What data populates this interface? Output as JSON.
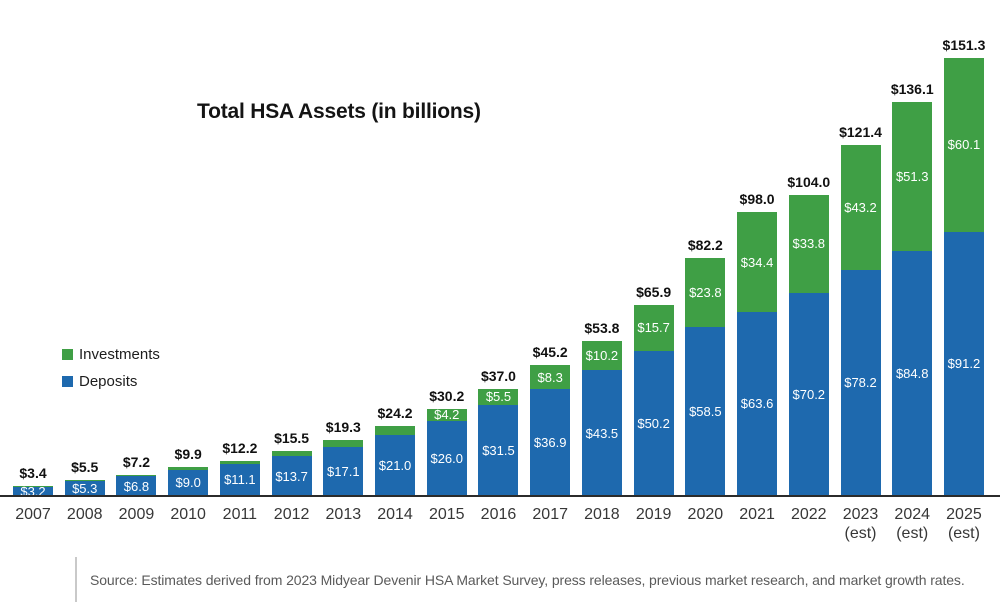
{
  "title": "Total HSA Assets (in billions)",
  "legend": {
    "investments": {
      "label": "Investments"
    },
    "deposits": {
      "label": "Deposits"
    }
  },
  "source": "Source: Estimates derived from 2023 Midyear Devenir HSA Market Survey, press releases, previous market research, and market growth rates.",
  "colors": {
    "investments": "#3f9f45",
    "deposits": "#1e69ae",
    "axis": "#2b2b2b",
    "total_label": "#111111",
    "segment_label": "#ffffff",
    "source_text": "#5a5a5a"
  },
  "chart_data": {
    "type": "bar",
    "stacked": true,
    "title": "Total HSA Assets (in billions)",
    "unit": "USD billions",
    "grid": false,
    "legend_position": "middle-left",
    "ylim": [
      0,
      160
    ],
    "categories": [
      {
        "label": "2007",
        "sublabel": ""
      },
      {
        "label": "2008",
        "sublabel": ""
      },
      {
        "label": "2009",
        "sublabel": ""
      },
      {
        "label": "2010",
        "sublabel": ""
      },
      {
        "label": "2011",
        "sublabel": ""
      },
      {
        "label": "2012",
        "sublabel": ""
      },
      {
        "label": "2013",
        "sublabel": ""
      },
      {
        "label": "2014",
        "sublabel": ""
      },
      {
        "label": "2015",
        "sublabel": ""
      },
      {
        "label": "2016",
        "sublabel": ""
      },
      {
        "label": "2017",
        "sublabel": ""
      },
      {
        "label": "2018",
        "sublabel": ""
      },
      {
        "label": "2019",
        "sublabel": ""
      },
      {
        "label": "2020",
        "sublabel": ""
      },
      {
        "label": "2021",
        "sublabel": ""
      },
      {
        "label": "2022",
        "sublabel": ""
      },
      {
        "label": "2023",
        "sublabel": "(est)"
      },
      {
        "label": "2024",
        "sublabel": "(est)"
      },
      {
        "label": "2025",
        "sublabel": "(est)"
      }
    ],
    "series": [
      {
        "name": "Investments",
        "color": "#3f9f45",
        "values": [
          0.2,
          0.2,
          0.4,
          0.9,
          1.1,
          1.8,
          2.2,
          3.2,
          4.2,
          5.5,
          8.3,
          10.2,
          15.7,
          23.8,
          34.4,
          33.8,
          43.2,
          51.3,
          60.1
        ],
        "labels_shown_from_index": 8
      },
      {
        "name": "Deposits",
        "color": "#1e69ae",
        "values": [
          3.2,
          5.3,
          6.8,
          9.0,
          11.1,
          13.7,
          17.1,
          21.0,
          26.0,
          31.5,
          36.9,
          43.5,
          50.2,
          58.5,
          63.6,
          70.2,
          78.2,
          84.8,
          91.2
        ],
        "labels_shown_from_index": 0
      }
    ],
    "totals": [
      3.4,
      5.5,
      7.2,
      9.9,
      12.2,
      15.5,
      19.3,
      24.2,
      30.2,
      37.0,
      45.2,
      53.8,
      65.9,
      82.2,
      98.0,
      104.0,
      121.4,
      136.1,
      151.3
    ],
    "value_prefix": "$"
  }
}
